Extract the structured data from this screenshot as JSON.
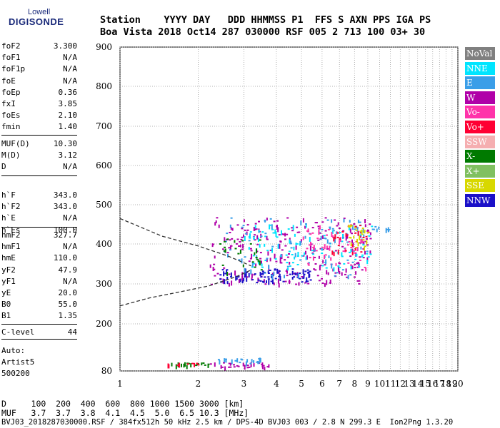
{
  "logo": {
    "line1": "Lowell",
    "line2": "DIGISONDE"
  },
  "header": {
    "line1": "Station    YYYY DAY   DDD HHMMSS P1  FFS S AXN PPS IGA PS",
    "line2": "Boa Vista 2018 Oct14 287 030000 RSF 005 2 713 100 03+ 30"
  },
  "params_group1": [
    {
      "key": "foF2",
      "value": "3.300"
    },
    {
      "key": "foF1",
      "value": "N/A"
    },
    {
      "key": "foF1p",
      "value": "N/A"
    },
    {
      "key": "foE",
      "value": "N/A"
    },
    {
      "key": "foEp",
      "value": "0.36"
    },
    {
      "key": "fxI",
      "value": "3.85"
    },
    {
      "key": "foEs",
      "value": "2.10"
    },
    {
      "key": "fmin",
      "value": "1.40"
    }
  ],
  "params_group2": [
    {
      "key": "MUF(D)",
      "value": "10.30"
    },
    {
      "key": "M(D)",
      "value": "3.12"
    },
    {
      "key": "D",
      "value": "N/A"
    }
  ],
  "params_group3": [
    {
      "key": "h`F",
      "value": "343.0"
    },
    {
      "key": "h`F2",
      "value": "343.0"
    },
    {
      "key": "h`E",
      "value": "N/A"
    },
    {
      "key": "h`Es",
      "value": "100.0"
    }
  ],
  "params_group4": [
    {
      "key": "hmF2",
      "value": "327.7"
    },
    {
      "key": "hmF1",
      "value": "N/A"
    },
    {
      "key": "hmE",
      "value": "110.0"
    },
    {
      "key": "yF2",
      "value": "47.9"
    },
    {
      "key": "yF1",
      "value": "N/A"
    },
    {
      "key": "yE",
      "value": "20.0"
    },
    {
      "key": "B0",
      "value": "55.0"
    },
    {
      "key": "B1",
      "value": "1.35"
    }
  ],
  "params_group5": [
    {
      "key": "C-level",
      "value": "44"
    }
  ],
  "auto": {
    "line1": "Auto:",
    "line2": "Artist5",
    "line3": "500200"
  },
  "legend": [
    {
      "label": "NoVal",
      "bg": "#808080",
      "fg": "#ffffff"
    },
    {
      "label": "NNE",
      "bg": "#00e5ff",
      "fg": "#ffffff"
    },
    {
      "label": "E",
      "bg": "#3a9ee8",
      "fg": "#ffffff"
    },
    {
      "label": "W",
      "bg": "#b000a8",
      "fg": "#ffffff"
    },
    {
      "label": "Vo-",
      "bg": "#ff33aa",
      "fg": "#ffffff"
    },
    {
      "label": "Vo+",
      "bg": "#ff0033",
      "fg": "#ffffff"
    },
    {
      "label": "SSW",
      "bg": "#f5aeb0",
      "fg": "#ffffff"
    },
    {
      "label": "X-",
      "bg": "#007a00",
      "fg": "#ffffff"
    },
    {
      "label": "X+",
      "bg": "#80c060",
      "fg": "#ffffff"
    },
    {
      "label": "SSE",
      "bg": "#d8d800",
      "fg": "#ffffff"
    },
    {
      "label": "NNW",
      "bg": "#1a10c8",
      "fg": "#ffffff"
    }
  ],
  "bottom": {
    "line1": "D     100  200  400  600  800 1000 1500 3000 [km]",
    "line2": "MUF   3.7  3.7  3.8  4.1  4.5  5.0  6.5 10.3 [MHz]",
    "line3": "BVJ03_2018287030000.RSF / 384fx512h 50 kHz 2.5 km / DPS-4D BVJ03 003 / 2.8 N 299.3 E  Ion2Png 1.3.20"
  },
  "chart_data": {
    "type": "scatter",
    "x_ticks": [
      "1",
      "2",
      "3",
      "4",
      "5",
      "6",
      "7",
      "8",
      "9",
      "10",
      "11",
      "12",
      "13",
      "14",
      "15",
      "16",
      "17",
      "18",
      "19",
      "20"
    ],
    "y_ticks": [
      "80",
      "200",
      "300",
      "400",
      "500",
      "600",
      "700",
      "800",
      "900"
    ],
    "x_scale": "log",
    "xlim": [
      1,
      20
    ],
    "ylim": [
      80,
      900
    ],
    "y_scale": "nonlinear",
    "grid": true,
    "legend_position": "right",
    "clusters": [
      {
        "name": "W",
        "color": "#b000a8",
        "x_range": [
          2.2,
          9.2
        ],
        "y_range": [
          300,
          470
        ],
        "count": 260
      },
      {
        "name": "NNW",
        "color": "#1a10c8",
        "x_range": [
          2.4,
          5.5
        ],
        "y_range": [
          305,
          340
        ],
        "count": 90
      },
      {
        "name": "NNE",
        "color": "#00e5ff",
        "x_range": [
          3.0,
          9.3
        ],
        "y_range": [
          340,
          450
        ],
        "count": 110
      },
      {
        "name": "E",
        "color": "#3a9ee8",
        "x_range": [
          2.5,
          9.0
        ],
        "y_range": [
          320,
          470
        ],
        "count": 90
      },
      {
        "name": "Vo-",
        "color": "#ff33aa",
        "x_range": [
          5.0,
          9.0
        ],
        "y_range": [
          340,
          450
        ],
        "count": 50
      },
      {
        "name": "Vo+",
        "color": "#ff0033",
        "x_range": [
          6.5,
          9.0
        ],
        "y_range": [
          380,
          450
        ],
        "count": 30
      },
      {
        "name": "X-",
        "color": "#007a00",
        "x_range": [
          2.4,
          3.5
        ],
        "y_range": [
          330,
          420
        ],
        "count": 25
      },
      {
        "name": "SSE",
        "color": "#d8d800",
        "x_range": [
          7.5,
          9.0
        ],
        "y_range": [
          390,
          450
        ],
        "count": 25
      },
      {
        "name": "E",
        "color": "#3a9ee8",
        "x_range": [
          9.2,
          10.8
        ],
        "y_range": [
          438,
          446
        ],
        "count": 10
      },
      {
        "name": "E-layer",
        "color": "#007a00",
        "x_range": [
          1.4,
          2.2
        ],
        "y_range": [
          95,
          102
        ],
        "count": 20
      },
      {
        "name": "E-layer",
        "color": "#ff0033",
        "x_range": [
          1.4,
          2.0
        ],
        "y_range": [
          96,
          101
        ],
        "count": 10
      },
      {
        "name": "E-layer",
        "color": "#b000a8",
        "x_range": [
          2.1,
          3.8
        ],
        "y_range": [
          90,
          103
        ],
        "count": 30
      },
      {
        "name": "E-layer",
        "color": "#3a9ee8",
        "x_range": [
          2.3,
          3.5
        ],
        "y_range": [
          100,
          115
        ],
        "count": 25
      }
    ],
    "profile_line": [
      [
        1.0,
        465
      ],
      [
        1.45,
        420
      ],
      [
        2.0,
        395
      ],
      [
        2.6,
        370
      ],
      [
        3.2,
        345
      ]
    ],
    "profile_line2": [
      [
        1.0,
        245
      ],
      [
        1.3,
        265
      ],
      [
        1.7,
        280
      ],
      [
        2.2,
        295
      ],
      [
        2.8,
        318
      ],
      [
        3.2,
        335
      ]
    ]
  }
}
